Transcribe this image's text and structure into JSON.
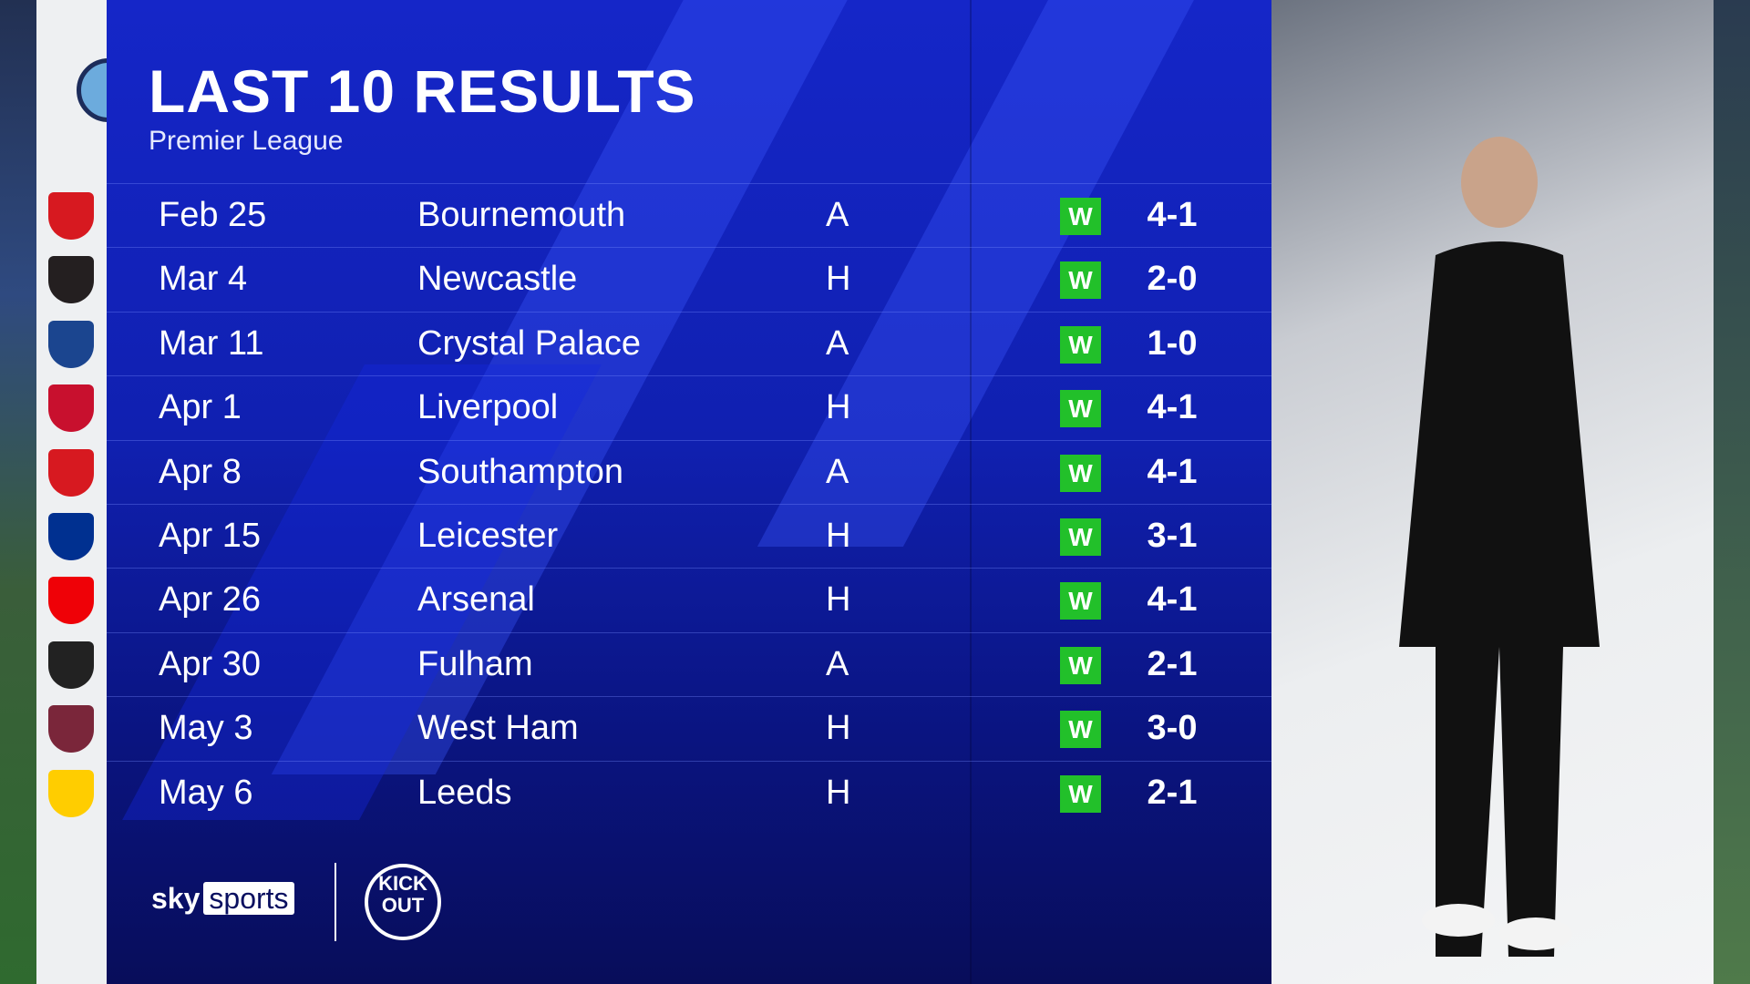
{
  "header": {
    "title": "LAST 10 RESULTS",
    "subtitle": "Premier League",
    "team_crest": "manchester-city-crest"
  },
  "colors": {
    "panel": "#1526c8",
    "win": "#22c02a"
  },
  "results": [
    {
      "date": "Feb 25",
      "opponent": "Bournemouth",
      "venue": "A",
      "result": "W",
      "score": "4-1",
      "crest_color": "#d71920"
    },
    {
      "date": "Mar 4",
      "opponent": "Newcastle",
      "venue": "H",
      "result": "W",
      "score": "2-0",
      "crest_color": "#241f20"
    },
    {
      "date": "Mar 11",
      "opponent": "Crystal Palace",
      "venue": "A",
      "result": "W",
      "score": "1-0",
      "crest_color": "#1b458f"
    },
    {
      "date": "Apr 1",
      "opponent": "Liverpool",
      "venue": "H",
      "result": "W",
      "score": "4-1",
      "crest_color": "#c8102e"
    },
    {
      "date": "Apr 8",
      "opponent": "Southampton",
      "venue": "A",
      "result": "W",
      "score": "4-1",
      "crest_color": "#d71920"
    },
    {
      "date": "Apr 15",
      "opponent": "Leicester",
      "venue": "H",
      "result": "W",
      "score": "3-1",
      "crest_color": "#003090"
    },
    {
      "date": "Apr 26",
      "opponent": "Arsenal",
      "venue": "H",
      "result": "W",
      "score": "4-1",
      "crest_color": "#ef0107"
    },
    {
      "date": "Apr 30",
      "opponent": "Fulham",
      "venue": "A",
      "result": "W",
      "score": "2-1",
      "crest_color": "#222222"
    },
    {
      "date": "May 3",
      "opponent": "West Ham",
      "venue": "H",
      "result": "W",
      "score": "3-0",
      "crest_color": "#7a263a"
    },
    {
      "date": "May 6",
      "opponent": "Leeds",
      "venue": "H",
      "result": "W",
      "score": "2-1",
      "crest_color": "#ffcd00"
    }
  ],
  "footer": {
    "brand_sky": "sky",
    "brand_sports": "sports",
    "partner_logo": "KICK IT OUT"
  }
}
